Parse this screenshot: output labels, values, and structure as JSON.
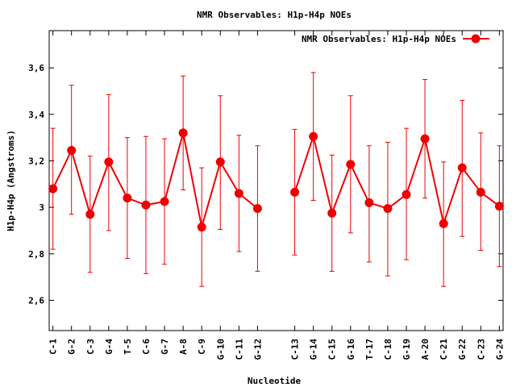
{
  "chart_data": {
    "type": "line",
    "title": "NMR Observables: H1p-H4p NOEs",
    "xlabel": "Nucleotide",
    "ylabel": "H1p-H4p (Angstroms)",
    "legend": {
      "label": "NMR Observables: H1p-H4p NOEs",
      "placement": "top-right"
    },
    "ylim": [
      2.47,
      3.76
    ],
    "yticks": [
      2.6,
      2.8,
      3,
      3.2,
      3.4,
      3.6
    ],
    "ytick_labels": [
      "2,6",
      "2,8",
      "3",
      "3,2",
      "3,4",
      "3,6"
    ],
    "grid": false,
    "color": "#ee0000",
    "xlim": [
      0.8,
      25.2
    ],
    "series": [
      {
        "name": "NMR Observables: H1p-H4p NOEs",
        "points": [
          {
            "x": 1,
            "label": "C-1",
            "y": 3.08,
            "lo": 2.82,
            "hi": 3.34
          },
          {
            "x": 2,
            "label": "G-2",
            "y": 3.245,
            "lo": 2.97,
            "hi": 3.525
          },
          {
            "x": 3,
            "label": "C-3",
            "y": 2.97,
            "lo": 2.72,
            "hi": 3.22
          },
          {
            "x": 4,
            "label": "G-4",
            "y": 3.195,
            "lo": 2.9,
            "hi": 3.485
          },
          {
            "x": 5,
            "label": "T-5",
            "y": 3.04,
            "lo": 2.78,
            "hi": 3.3
          },
          {
            "x": 6,
            "label": "C-6",
            "y": 3.01,
            "lo": 2.715,
            "hi": 3.305
          },
          {
            "x": 7,
            "label": "G-7",
            "y": 3.025,
            "lo": 2.755,
            "hi": 3.295
          },
          {
            "x": 8,
            "label": "A-8",
            "y": 3.32,
            "lo": 3.075,
            "hi": 3.565
          },
          {
            "x": 9,
            "label": "C-9",
            "y": 2.915,
            "lo": 2.66,
            "hi": 3.17
          },
          {
            "x": 10,
            "label": "G-10",
            "y": 3.195,
            "lo": 2.905,
            "hi": 3.48
          },
          {
            "x": 11,
            "label": "C-11",
            "y": 3.06,
            "lo": 2.81,
            "hi": 3.31
          },
          {
            "x": 12,
            "label": "G-12",
            "y": 2.995,
            "lo": 2.725,
            "hi": 3.265
          },
          {
            "x": 14,
            "label": "C-13",
            "y": 3.065,
            "lo": 2.795,
            "hi": 3.335
          },
          {
            "x": 15,
            "label": "G-14",
            "y": 3.305,
            "lo": 3.03,
            "hi": 3.58
          },
          {
            "x": 16,
            "label": "C-15",
            "y": 2.975,
            "lo": 2.725,
            "hi": 3.225
          },
          {
            "x": 17,
            "label": "G-16",
            "y": 3.185,
            "lo": 2.89,
            "hi": 3.48
          },
          {
            "x": 18,
            "label": "T-17",
            "y": 3.02,
            "lo": 2.765,
            "hi": 3.265
          },
          {
            "x": 19,
            "label": "C-18",
            "y": 2.995,
            "lo": 2.705,
            "hi": 3.28
          },
          {
            "x": 20,
            "label": "G-19",
            "y": 3.055,
            "lo": 2.775,
            "hi": 3.34
          },
          {
            "x": 21,
            "label": "A-20",
            "y": 3.295,
            "lo": 3.04,
            "hi": 3.55
          },
          {
            "x": 22,
            "label": "C-21",
            "y": 2.93,
            "lo": 2.66,
            "hi": 3.195
          },
          {
            "x": 23,
            "label": "G-22",
            "y": 3.17,
            "lo": 2.875,
            "hi": 3.46
          },
          {
            "x": 24,
            "label": "C-23",
            "y": 3.065,
            "lo": 2.815,
            "hi": 3.32
          },
          {
            "x": 25,
            "label": "G-24",
            "y": 3.005,
            "lo": 2.745,
            "hi": 3.265
          }
        ]
      }
    ]
  }
}
